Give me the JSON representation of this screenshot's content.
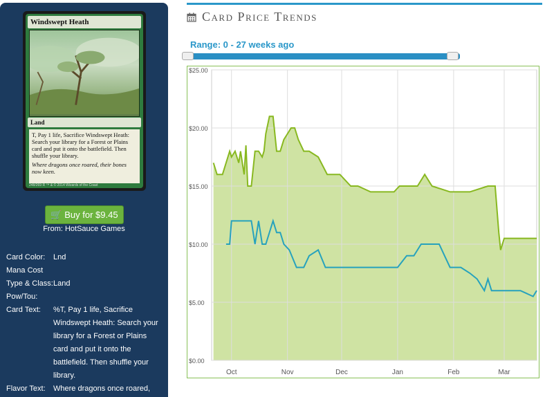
{
  "card": {
    "name": "Windswept Heath",
    "type_line": "Land",
    "rules_text": "T, Pay 1 life, Sacrifice Windswept Heath: Search your library for a Forest or Plains card and put it onto the battlefield. Then shuffle your library.",
    "flavor": "Where dragons once roared, their bones now keen.",
    "footer": "248/269 R  ™ & © 2014 Wizards of the Coast"
  },
  "buy": {
    "label": "Buy for $9.45",
    "from": "From: HotSauce Games"
  },
  "details": [
    {
      "label": "Card Color:",
      "value": "Lnd"
    },
    {
      "label": "Mana Cost",
      "value": ""
    },
    {
      "label": "Type & Class:",
      "value": "Land"
    },
    {
      "label": "Pow/Tou:",
      "value": ""
    },
    {
      "label": "Card Text:",
      "value": "%T, Pay 1 life, Sacrifice Windswept Heath: Search your library for a Forest or Plains card and put it onto the battlefield. Then shuffle your library."
    },
    {
      "label": "Flavor Text:",
      "value": "Where dragons once roared,"
    }
  ],
  "header": {
    "title": "Card Price Trends",
    "icon": "calendar-icon"
  },
  "range_label": "Range: 0 - 27 weeks ago",
  "slider": {
    "min_weeks": 0,
    "max_weeks": 27
  },
  "colors": {
    "accent": "#2a97c9",
    "sidebar": "#1b3a5e",
    "buy": "#6bb33e",
    "line1": "#88b820",
    "fill1": "#cfe3a3",
    "line2": "#26a2bd"
  },
  "chart_data": {
    "type": "line",
    "title": "",
    "x_ticks": [
      "Oct",
      "Nov",
      "Dec",
      "Jan",
      "Feb",
      "Mar"
    ],
    "y_ticks": [
      "$0.00",
      "$5.00",
      "$10.00",
      "$15.00",
      "$20.00",
      "$25.00"
    ],
    "ylim": [
      0,
      25
    ],
    "grid": true,
    "series": [
      {
        "x": [
          "Sep 21",
          "Sep 23",
          "Sep 26",
          "Sep 28",
          "Sep 30",
          "Oct 1",
          "Oct 3",
          "Oct 5",
          "Oct 6",
          "Oct 8",
          "Oct 9",
          "Oct 10",
          "Oct 12",
          "Oct 14",
          "Oct 16",
          "Oct 18",
          "Oct 19",
          "Oct 20",
          "Oct 22",
          "Oct 24",
          "Oct 26",
          "Oct 28",
          "Oct 30",
          "Nov 1",
          "Nov 3",
          "Nov 5",
          "Nov 7",
          "Nov 10",
          "Nov 13",
          "Nov 18",
          "Nov 23",
          "Nov 30",
          "Dec 6",
          "Dec 10",
          "Dec 17",
          "Dec 24",
          "Dec 30",
          "Jan 2",
          "Jan 6",
          "Jan 12",
          "Jan 16",
          "Jan 20",
          "Jan 30",
          "Feb 10",
          "Feb 20",
          "Feb 24",
          "Feb 26",
          "Feb 27",
          "Mar 1",
          "Mar 5",
          "Mar 10",
          "Mar 15",
          "Mar 19"
        ],
        "values": [
          17,
          16,
          16,
          17,
          18,
          17.5,
          18,
          17,
          18,
          16,
          18.5,
          15,
          15,
          18,
          18,
          17.5,
          18,
          19.5,
          21,
          21,
          18,
          18,
          19,
          19.5,
          20,
          20,
          19,
          18,
          18,
          17.5,
          16,
          16,
          15,
          15,
          14.5,
          14.5,
          14.5,
          15,
          15,
          15,
          16,
          15,
          14.5,
          14.5,
          15,
          15,
          11,
          9.5,
          10.5,
          10.5,
          10.5,
          10.5,
          10.5
        ]
      },
      {
        "x": [
          "Sep 28",
          "Sep 30",
          "Oct 1",
          "Oct 4",
          "Oct 8",
          "Oct 12",
          "Oct 14",
          "Oct 16",
          "Oct 18",
          "Oct 20",
          "Oct 24",
          "Oct 26",
          "Oct 28",
          "Oct 30",
          "Nov 2",
          "Nov 6",
          "Nov 10",
          "Nov 13",
          "Nov 18",
          "Nov 22",
          "Nov 25",
          "Dec 1",
          "Dec 15",
          "Jan 1",
          "Jan 6",
          "Jan 10",
          "Jan 14",
          "Jan 24",
          "Jan 27",
          "Jan 30",
          "Feb 5",
          "Feb 10",
          "Feb 14",
          "Feb 18",
          "Feb 20",
          "Feb 22",
          "Mar 1",
          "Mar 10",
          "Mar 17",
          "Mar 19"
        ],
        "values": [
          10,
          10,
          12,
          12,
          12,
          12,
          10,
          12,
          10,
          10,
          12,
          11,
          11,
          10,
          9.5,
          8,
          8,
          9,
          9.5,
          8,
          8,
          8,
          8,
          8,
          9,
          9,
          10,
          10,
          9,
          8,
          8,
          7.5,
          7,
          6,
          7,
          6,
          6,
          6,
          5.5,
          6
        ]
      }
    ]
  }
}
